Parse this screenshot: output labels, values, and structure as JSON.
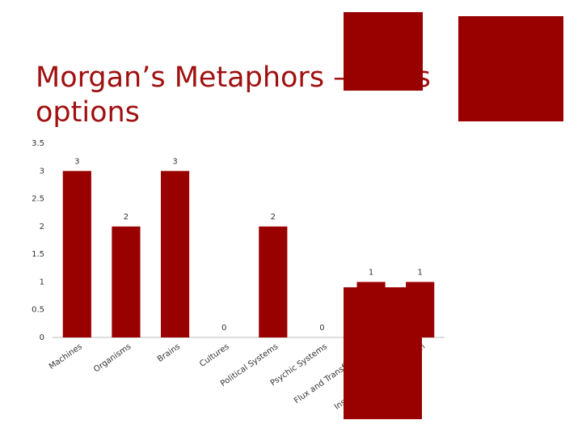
{
  "chart_data": {
    "type": "bar",
    "title": "Morgan’s Metaphors – Class options",
    "categories": [
      "Machines",
      "Organisms",
      "Brains",
      "Cultures",
      "Political Systems",
      "Psychic Systems",
      "Flux and Transformation",
      "Instruments of Domination"
    ],
    "values": [
      3,
      2,
      3,
      0,
      2,
      0,
      1,
      1
    ],
    "color": "#990000",
    "ylim": [
      0,
      3.5
    ],
    "yticks": [
      0,
      0.5,
      1,
      1.5,
      2,
      2.5,
      3,
      3.5
    ],
    "grid": false
  }
}
